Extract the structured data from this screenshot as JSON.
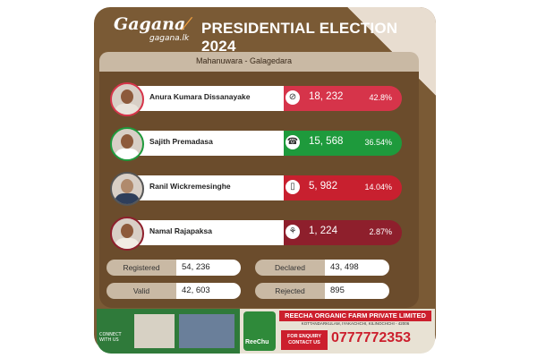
{
  "brand": {
    "logo": "Gagana",
    "site": "gagana.lk"
  },
  "title": "PRESIDENTIAL ELECTION 2024",
  "location": "Mahanuwara - Galagedara",
  "candidates": [
    {
      "name": "Anura Kumara Dissanayake",
      "symbol": "compass-icon",
      "votes": "18, 232",
      "percent": "42.8%",
      "percent_value": 42.8,
      "color": "#d6344a",
      "border": "#d6344a"
    },
    {
      "name": "Sajith Premadasa",
      "symbol": "telephone-icon",
      "votes": "15, 568",
      "percent": "36.54%",
      "percent_value": 36.54,
      "color": "#1e9a3c",
      "border": "#1e9a3c"
    },
    {
      "name": "Ranil Wickremesinghe",
      "symbol": "gas-cylinder-icon",
      "votes": "5, 982",
      "percent": "14.04%",
      "percent_value": 14.04,
      "color": "#c8202f",
      "border": "#555555"
    },
    {
      "name": "Namal Rajapaksa",
      "symbol": "flower-bud-icon",
      "votes": "1, 224",
      "percent": "2.87%",
      "percent_value": 2.87,
      "color": "#8e1f2c",
      "border": "#8e1f2c"
    }
  ],
  "stats": {
    "registered": {
      "label": "Registered",
      "value": "54, 236"
    },
    "declared": {
      "label": "Declared",
      "value": "43, 498"
    },
    "valid": {
      "label": "Valid",
      "value": "42, 603"
    },
    "rejected": {
      "label": "Rejected",
      "value": "895"
    }
  },
  "ad": {
    "brand": "ReeChu",
    "connect": "CONNECT WITH US",
    "company": "REECHA ORGANIC FARM PRIVATE LIMITED",
    "address": "KOTTANDARKULAM, IYAKACHCHI, KILINOCHCHI - 42006",
    "enquiry": "FOR ENQUIRY CONTACT US",
    "phone": "0777772353"
  }
}
